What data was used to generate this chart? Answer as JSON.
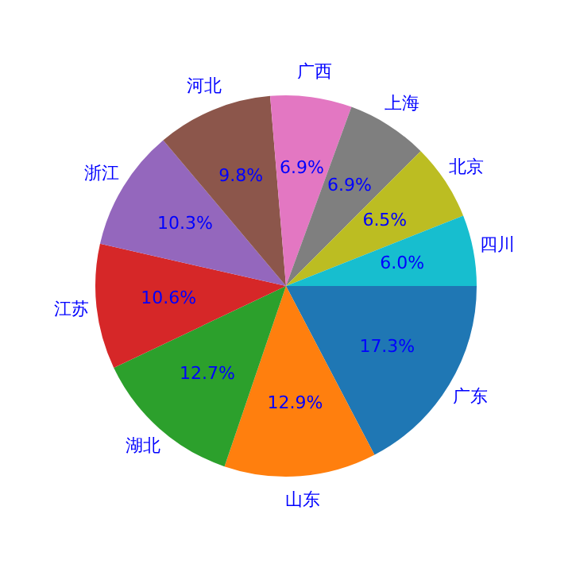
{
  "chart_data": {
    "type": "pie",
    "categories": [
      "广东",
      "山东",
      "湖北",
      "江苏",
      "浙江",
      "河北",
      "广西",
      "上海",
      "北京",
      "四川"
    ],
    "values": [
      17.3,
      12.9,
      12.7,
      10.6,
      10.3,
      9.8,
      6.9,
      6.9,
      6.5,
      6.0
    ],
    "value_labels": [
      "17.3%",
      "12.9%",
      "12.7%",
      "10.6%",
      "10.3%",
      "9.8%",
      "6.9%",
      "6.9%",
      "6.5%",
      "6.0%"
    ],
    "colors": [
      "#1f77b4",
      "#ff7f0e",
      "#2ca02c",
      "#d62728",
      "#9467bd",
      "#8c564b",
      "#e377c2",
      "#7f7f7f",
      "#bcbd22",
      "#17becf"
    ],
    "legend": false
  }
}
